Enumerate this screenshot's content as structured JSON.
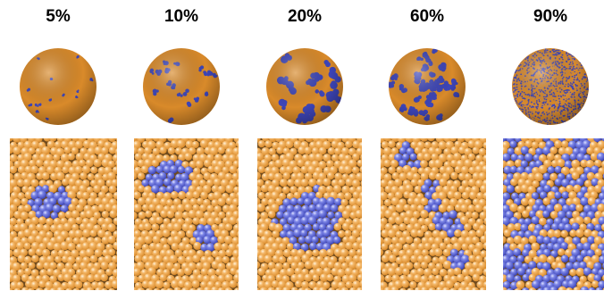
{
  "panels": [
    {
      "label": "5%",
      "fraction": 0.05
    },
    {
      "label": "10%",
      "fraction": 0.1
    },
    {
      "label": "20%",
      "fraction": 0.2
    },
    {
      "label": "60%",
      "fraction": 0.6
    },
    {
      "label": "90%",
      "fraction": 0.9
    }
  ],
  "colors": {
    "orange": "#d98a2a",
    "orange_light": "#f4b768",
    "blue": "#3d45b8",
    "blue_light": "#7d86e6",
    "background": "#ffffff"
  }
}
